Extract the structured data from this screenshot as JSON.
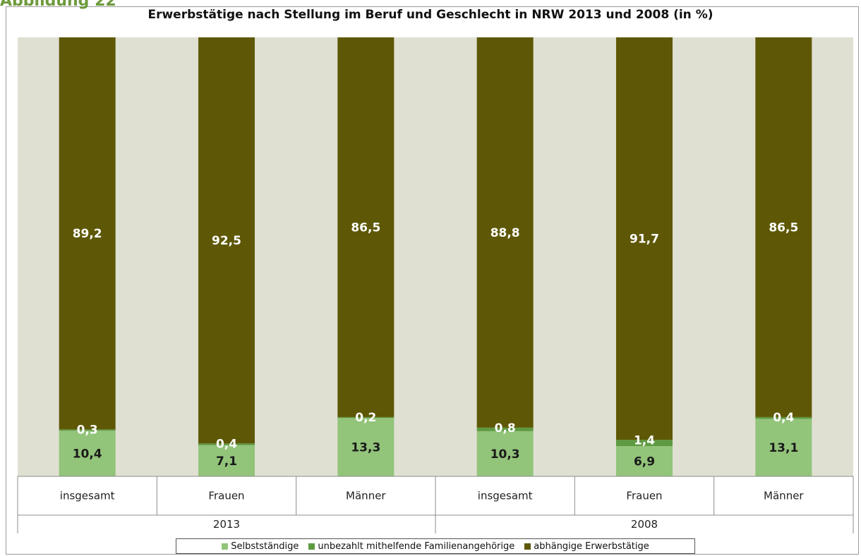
{
  "figure_label": "Abbildung 22",
  "chart_data": {
    "type": "bar",
    "stacked": true,
    "title": "Erwerbstätige nach Stellung im Beruf und Geschlecht in NRW 2013 und 2008 (in %)",
    "groups": [
      {
        "label": "2013",
        "categories": [
          "insgesamt",
          "Frauen",
          "Männer"
        ]
      },
      {
        "label": "2008",
        "categories": [
          "insgesamt",
          "Frauen",
          "Männer"
        ]
      }
    ],
    "categories": [
      "insgesamt",
      "Frauen",
      "Männer",
      "insgesamt",
      "Frauen",
      "Männer"
    ],
    "series": [
      {
        "name": "Selbstständige",
        "color": "#92c47a",
        "values": [
          10.4,
          7.1,
          13.3,
          10.3,
          6.9,
          13.1
        ],
        "labels": [
          "10,4",
          "7,1",
          "13,3",
          "10,3",
          "6,9",
          "13,1"
        ]
      },
      {
        "name": "unbezahlt mithelfende Familienangehörige",
        "color": "#5e9a42",
        "values": [
          0.3,
          0.4,
          0.2,
          0.8,
          1.4,
          0.4
        ],
        "labels": [
          "0,3",
          "0,4",
          "0,2",
          "0,8",
          "1,4",
          "0,4"
        ]
      },
      {
        "name": "abhängige Erwerbstätige",
        "color": "#5e5806",
        "values": [
          89.2,
          92.5,
          86.5,
          88.8,
          91.7,
          86.5
        ],
        "labels": [
          "89,2",
          "92,5",
          "86,5",
          "88,8",
          "91,7",
          "86,5"
        ]
      }
    ],
    "ylim": [
      0,
      100
    ],
    "plot_background": "#dfe0d2",
    "legend_position": "bottom"
  }
}
